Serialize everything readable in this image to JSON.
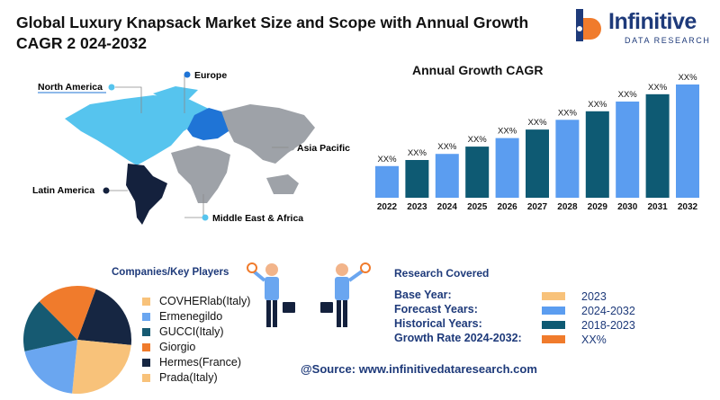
{
  "title": "Global Luxury Knapsack Market Size and Scope with Annual Growth CAGR 2 024-2032",
  "logo": {
    "word": "Infinitive",
    "sub": "DATA RESEARCH"
  },
  "regions": {
    "north_america": "North America",
    "europe": "Europe",
    "asia_pacific": "Asia Pacific",
    "latin_america": "Latin America",
    "mea": "Middle East & Africa"
  },
  "colors": {
    "light_blue": "#56c4ee",
    "blue": "#1f74d6",
    "grey": "#9ea2a8",
    "navy": "#14213d",
    "bar_light": "#5b9df0",
    "bar_dark": "#0e5a73",
    "orange": "#f07b2c",
    "peach": "#f8c27a",
    "pie_blue": "#6aa6f0",
    "pie_teal": "#165a72",
    "pie_navy": "#162642"
  },
  "chart_data": {
    "type": "bar",
    "title": "Annual Growth CAGR",
    "categories": [
      "2022",
      "2023",
      "2024",
      "2025",
      "2026",
      "2027",
      "2028",
      "2029",
      "2030",
      "2031",
      "2032"
    ],
    "labels": [
      "XX%",
      "XX%",
      "XX%",
      "XX%",
      "XX%",
      "XX%",
      "XX%",
      "XX%",
      "XX%",
      "XX%",
      "XX%"
    ],
    "values": [
      1.3,
      1.55,
      1.8,
      2.1,
      2.45,
      2.8,
      3.2,
      3.55,
      3.95,
      4.25,
      4.65
    ],
    "bar_colors": [
      "#5b9df0",
      "#0e5a73",
      "#5b9df0",
      "#0e5a73",
      "#5b9df0",
      "#0e5a73",
      "#5b9df0",
      "#0e5a73",
      "#5b9df0",
      "#0e5a73",
      "#5b9df0"
    ]
  },
  "players": {
    "title": "Companies/Key Players",
    "items": [
      {
        "label": "COVHERlab(Italy)",
        "color": "#f8c27a"
      },
      {
        "label": "Ermenegildo",
        "color": "#6aa6f0"
      },
      {
        "label": "GUCCI(Italy)",
        "color": "#165a72"
      },
      {
        "label": "Giorgio",
        "color": "#f07b2c"
      },
      {
        "label": "Hermes(France)",
        "color": "#162642"
      },
      {
        "label": "Prada(Italy)",
        "color": "#f8c27a"
      }
    ],
    "pie": [
      {
        "value": 21,
        "color": "#162642"
      },
      {
        "value": 25,
        "color": "#f8c27a"
      },
      {
        "value": 20,
        "color": "#6aa6f0"
      },
      {
        "value": 16,
        "color": "#165a72"
      },
      {
        "value": 18,
        "color": "#f07b2c"
      }
    ]
  },
  "research": {
    "title": "Research Covered",
    "rows": [
      {
        "label": "Base Year:",
        "value": "2023",
        "color": "#f8c27a"
      },
      {
        "label": "Forecast Years:",
        "value": "2024-2032",
        "color": "#5b9df0"
      },
      {
        "label": "Historical Years:",
        "value": "2018-2023",
        "color": "#0e5a73"
      },
      {
        "label": "Growth Rate 2024-2032:",
        "value": "XX%",
        "color": "#f07b2c"
      }
    ]
  },
  "source": "@Source: www.infinitivedataresearch.com"
}
